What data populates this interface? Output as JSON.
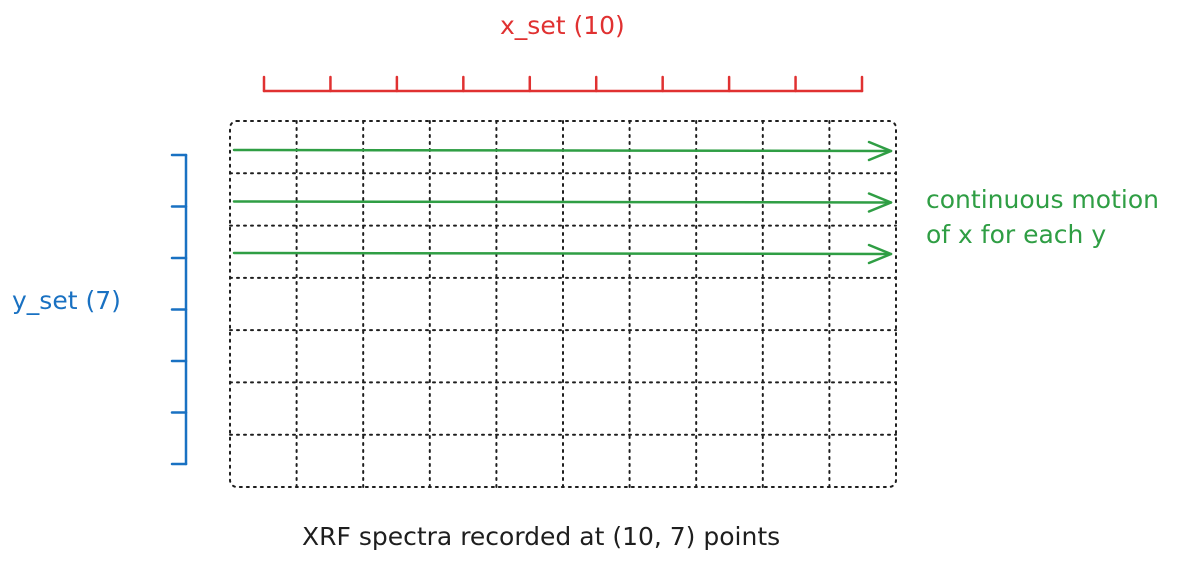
{
  "diagram": {
    "x_axis": {
      "label": "x_set (10)",
      "points": 10,
      "color": "#e03131"
    },
    "y_axis": {
      "label": "y_set (7)",
      "points": 7,
      "color": "#1971c2"
    },
    "grid": {
      "columns": 10,
      "rows": 7,
      "style": "dotted",
      "color": "#1e1e1e"
    },
    "scan": {
      "arrow_count": 3,
      "color": "#2f9e44",
      "annotation_line1": "continuous motion",
      "annotation_line2": "of x for each y"
    },
    "caption": "XRF spectra recorded at (10, 7) points"
  }
}
